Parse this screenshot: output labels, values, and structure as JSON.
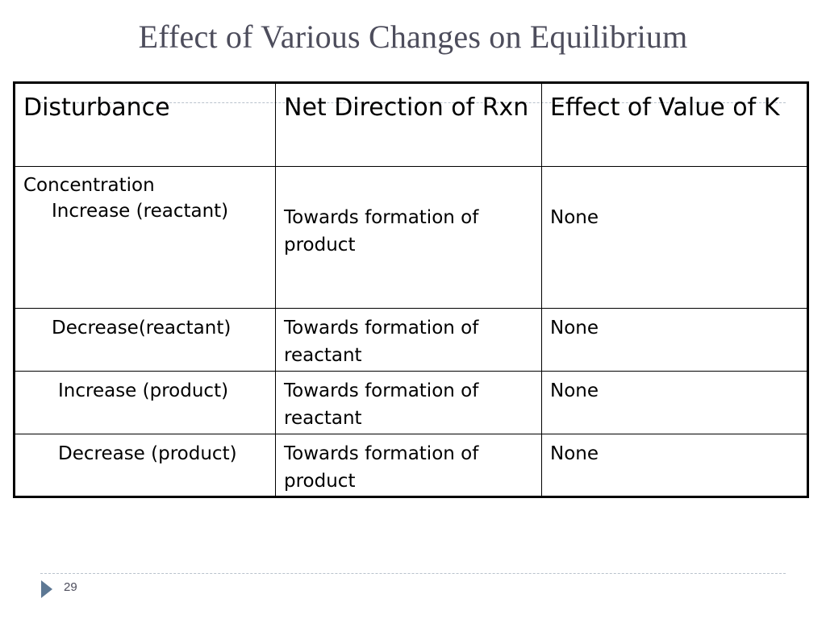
{
  "slide": {
    "title": "Effect of Various Changes on Equilibrium",
    "page_number": "29"
  },
  "table": {
    "headers": [
      "Disturbance",
      "Net Direction of Rxn",
      "Effect of Value of K"
    ],
    "category": "Concentration",
    "rows": [
      {
        "disturbance": "Increase (reactant)",
        "direction": "Towards formation of product",
        "k_effect": "None"
      },
      {
        "disturbance": "Decrease(reactant)",
        "direction": "Towards formation of reactant",
        "k_effect": "None"
      },
      {
        "disturbance": "Increase (product)",
        "direction": "Towards formation of reactant",
        "k_effect": "None"
      },
      {
        "disturbance": "Decrease (product)",
        "direction": "Towards formation of product",
        "k_effect": "None"
      }
    ]
  },
  "colors": {
    "title": "#4d4d5c",
    "accent": "#5d7894",
    "divider": "#b9c2cc"
  },
  "icons": {
    "footer_marker": "triangle-right-icon"
  }
}
